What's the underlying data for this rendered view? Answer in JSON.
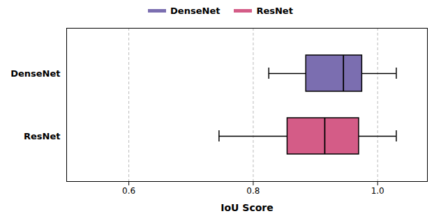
{
  "chart_data": {
    "type": "box",
    "orientation": "horizontal",
    "categories": [
      "DenseNet",
      "ResNet"
    ],
    "series": [
      {
        "name": "DenseNet",
        "color": "#7B6EB0",
        "whislo": 0.825,
        "q1": 0.885,
        "med": 0.945,
        "q3": 0.975,
        "whishi": 1.03
      },
      {
        "name": "ResNet",
        "color": "#D45C87",
        "whislo": 0.745,
        "q1": 0.855,
        "med": 0.915,
        "q3": 0.97,
        "whishi": 1.03
      }
    ],
    "xlabel": "IoU Score",
    "xlim": [
      0.5,
      1.08
    ],
    "xticks": [
      0.6,
      0.8,
      {
        "value": 1.0,
        "label": "1.0"
      }
    ],
    "grid": true,
    "legend": "top"
  }
}
